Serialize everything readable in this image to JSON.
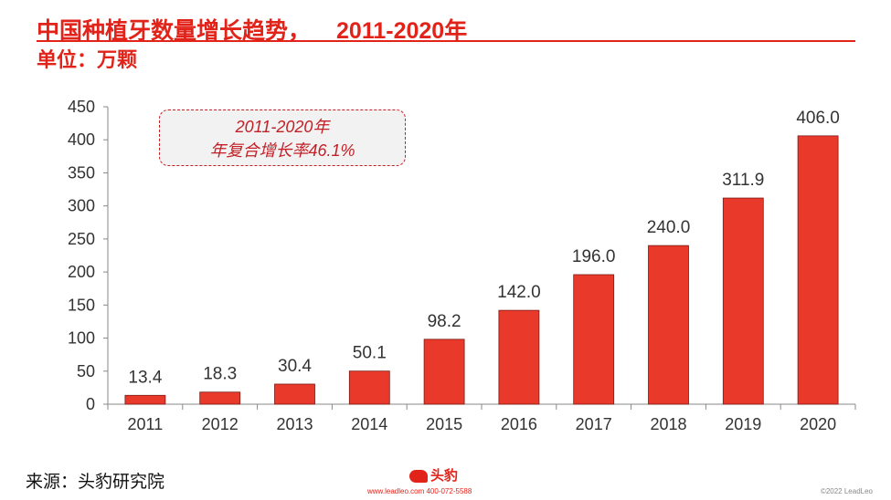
{
  "header": {
    "title": "中国种植牙数量增长趋势，",
    "title_years": "2011-2020年",
    "unit": "单位：万颗"
  },
  "annotation": {
    "line1": "2011-2020年",
    "line2": "年复合增长率46.1%"
  },
  "footer": {
    "source": "来源：头豹研究院",
    "logo_text": "头豹",
    "contact": "www.leadleo.com  400-072-5588",
    "copyright": "©2022 LeadLeo"
  },
  "colors": {
    "accent": "#e2231a",
    "bar": "#e8392b",
    "bar_outline": "#7a1a14"
  },
  "chart_data": {
    "type": "bar",
    "title": "",
    "xlabel": "",
    "ylabel": "",
    "categories": [
      "2011",
      "2012",
      "2013",
      "2014",
      "2015",
      "2016",
      "2017",
      "2018",
      "2019",
      "2020"
    ],
    "values": [
      13.4,
      18.3,
      30.4,
      50.1,
      98.2,
      142.0,
      196.0,
      240.0,
      311.9,
      406.0
    ],
    "value_labels": [
      "13.4",
      "18.3",
      "30.4",
      "50.1",
      "98.2",
      "142.0",
      "196.0",
      "240.0",
      "311.9",
      "406.0"
    ],
    "ylim": [
      0,
      450
    ],
    "yticks": [
      0,
      50,
      100,
      150,
      200,
      250,
      300,
      350,
      400,
      450
    ],
    "grid": false,
    "legend": "none"
  }
}
